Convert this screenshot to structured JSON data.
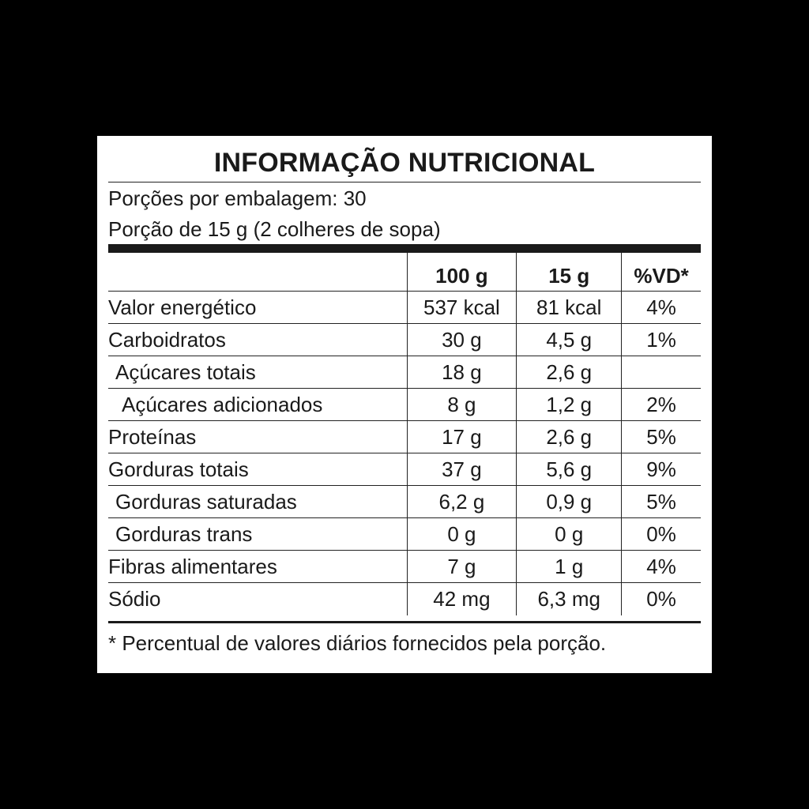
{
  "label": {
    "title": "INFORMAÇÃO NUTRICIONAL",
    "servings_per_package": "Porções por embalagem: 30",
    "serving_size": "Porção de 15 g (2 colheres de sopa)",
    "headers": {
      "nutrient": "",
      "per_100g": "100 g",
      "per_portion": "15 g",
      "dv": "%VD*"
    },
    "rows": [
      {
        "nutrient": "Valor energético",
        "per_100g": "537 kcal",
        "per_portion": "81 kcal",
        "dv": "4%"
      },
      {
        "nutrient": "Carboidratos",
        "per_100g": "30 g",
        "per_portion": "4,5 g",
        "dv": "1%"
      },
      {
        "nutrient": "Açúcares totais",
        "per_100g": "18 g",
        "per_portion": "2,6 g",
        "dv": ""
      },
      {
        "nutrient": "Açúcares adicionados",
        "per_100g": "8 g",
        "per_portion": "1,2 g",
        "dv": "2%"
      },
      {
        "nutrient": "Proteínas",
        "per_100g": "17 g",
        "per_portion": "2,6 g",
        "dv": "5%"
      },
      {
        "nutrient": "Gorduras totais",
        "per_100g": "37 g",
        "per_portion": "5,6 g",
        "dv": "9%"
      },
      {
        "nutrient": "Gorduras saturadas",
        "per_100g": "6,2 g",
        "per_portion": "0,9 g",
        "dv": "5%"
      },
      {
        "nutrient": "Gorduras trans",
        "per_100g": "0 g",
        "per_portion": "0 g",
        "dv": "0%"
      },
      {
        "nutrient": "Fibras alimentares",
        "per_100g": "7 g",
        "per_portion": "1 g",
        "dv": "4%"
      },
      {
        "nutrient": "Sódio",
        "per_100g": "42 mg",
        "per_portion": "6,3 mg",
        "dv": "0%"
      }
    ],
    "footnote": "* Percentual de valores diários fornecidos pela porção."
  }
}
